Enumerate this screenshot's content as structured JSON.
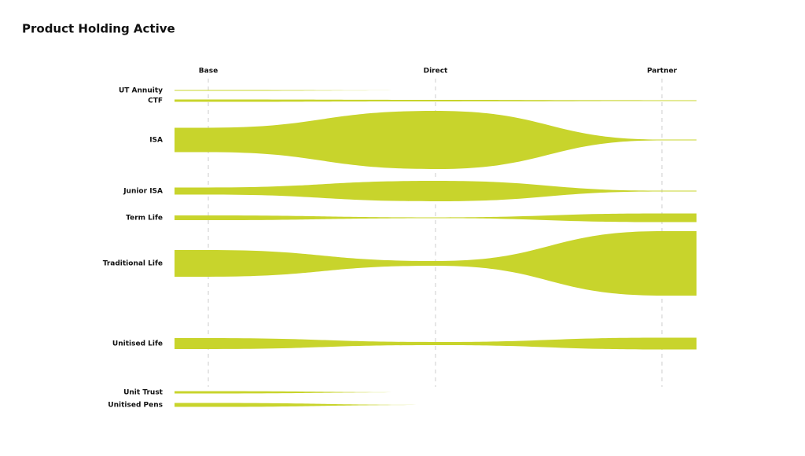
{
  "chart_data": {
    "type": "ribbon",
    "title": "Product Holding Active",
    "categories": [
      "Base",
      "Direct",
      "Partner"
    ],
    "color": "#c8d42c",
    "series": [
      {
        "name": "UT Annuity",
        "values": [
          1,
          0,
          0
        ]
      },
      {
        "name": "CTF",
        "values": [
          3,
          2,
          1
        ]
      },
      {
        "name": "ISA",
        "values": [
          31,
          74,
          1
        ]
      },
      {
        "name": "Junior ISA",
        "values": [
          9,
          26,
          1
        ]
      },
      {
        "name": "Term Life",
        "values": [
          6,
          1,
          11
        ]
      },
      {
        "name": "Traditional Life",
        "values": [
          34,
          6,
          82
        ]
      },
      {
        "name": "Unitised Life",
        "values": [
          14,
          4,
          15
        ]
      },
      {
        "name": "Unit Trust",
        "values": [
          3,
          0,
          0
        ]
      },
      {
        "name": "Unitised Pens",
        "values": [
          5,
          0,
          0
        ]
      }
    ]
  }
}
